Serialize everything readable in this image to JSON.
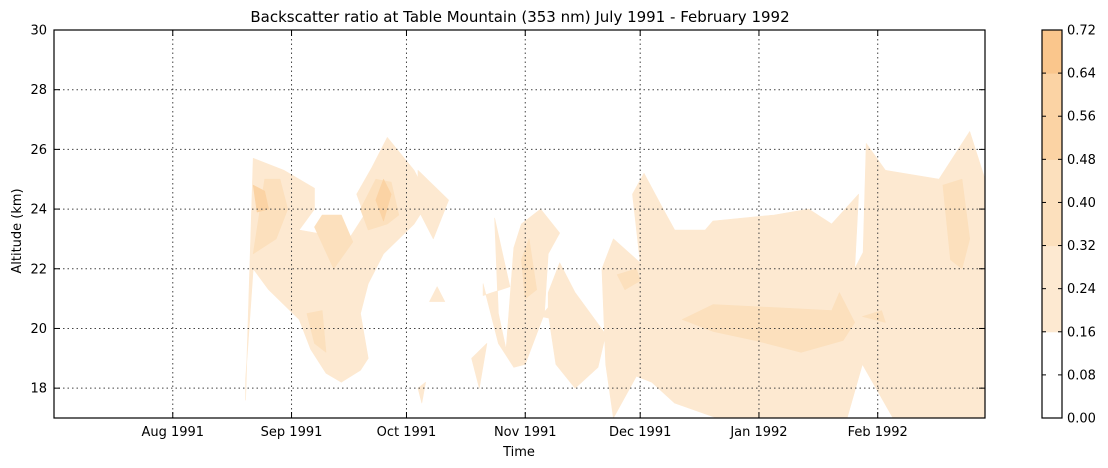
{
  "chart_data": {
    "type": "contour",
    "title": "Backscatter ratio at Table Mountain (353 nm) July 1991 - February 1992",
    "xlabel": "Time",
    "ylabel": "Altitude (km)",
    "x_range": [
      "1991-07-01",
      "1992-02-29"
    ],
    "xticks": [
      {
        "date": "1991-08-01",
        "label": "Aug 1991"
      },
      {
        "date": "1991-09-01",
        "label": "Sep 1991"
      },
      {
        "date": "1991-10-01",
        "label": "Oct 1991"
      },
      {
        "date": "1991-11-01",
        "label": "Nov 1991"
      },
      {
        "date": "1991-12-01",
        "label": "Dec 1991"
      },
      {
        "date": "1992-01-01",
        "label": "Jan 1992"
      },
      {
        "date": "1992-02-01",
        "label": "Feb 1992"
      }
    ],
    "ylim": [
      17,
      30
    ],
    "yticks": [
      "18",
      "20",
      "22",
      "24",
      "26",
      "28",
      "30"
    ],
    "grid": true,
    "colorbar": {
      "ticks": [
        "0.00",
        "0.08",
        "0.16",
        "0.24",
        "0.32",
        "0.40",
        "0.48",
        "0.56",
        "0.64",
        "0.72"
      ],
      "levels": [
        0.0,
        0.08,
        0.16,
        0.24,
        0.32,
        0.4,
        0.48,
        0.56,
        0.64,
        0.72
      ],
      "colors": [
        "#ffffff",
        "#ffffff",
        "#fde9d1",
        "#fde9d1",
        "#fce0bd",
        "#fce0bd",
        "#fbd3a4",
        "#fbd3a4",
        "#fac68c"
      ]
    },
    "regions": [
      {
        "level": 0.16,
        "points": [
          [
            "1991-08-20",
            17.6
          ],
          [
            "1991-08-22",
            25.7
          ],
          [
            "1991-08-30",
            25.3
          ],
          [
            "1991-09-07",
            24.7
          ],
          [
            "1991-09-07",
            24.0
          ],
          [
            "1991-09-03",
            23.3
          ],
          [
            "1991-09-16",
            23.0
          ],
          [
            "1991-09-20",
            23.8
          ],
          [
            "1991-09-18",
            24.5
          ],
          [
            "1991-09-22",
            25.4
          ],
          [
            "1991-09-26",
            26.4
          ],
          [
            "1991-10-03",
            25.3
          ],
          [
            "1991-10-07",
            24.3
          ],
          [
            "1991-10-03",
            23.5
          ],
          [
            "1991-09-29",
            23.0
          ],
          [
            "1991-09-25",
            22.5
          ],
          [
            "1991-09-21",
            21.5
          ],
          [
            "1991-09-19",
            20.5
          ],
          [
            "1991-09-21",
            19.0
          ],
          [
            "1991-09-19",
            18.6
          ],
          [
            "1991-09-14",
            18.2
          ],
          [
            "1991-09-10",
            18.5
          ],
          [
            "1991-09-06",
            19.3
          ],
          [
            "1991-09-03",
            20.3
          ],
          [
            "1991-08-26",
            21.3
          ],
          [
            "1991-08-22",
            22.0
          ],
          [
            "1991-08-20",
            18.3
          ]
        ]
      },
      {
        "level": 0.16,
        "points": [
          [
            "1991-10-04",
            25.3
          ],
          [
            "1991-10-12",
            24.3
          ],
          [
            "1991-10-08",
            23.0
          ],
          [
            "1991-10-04",
            24.0
          ]
        ]
      },
      {
        "level": 0.16,
        "points": [
          [
            "1991-10-21",
            21.1
          ],
          [
            "1991-10-28",
            21.4
          ],
          [
            "1991-10-24",
            23.7
          ],
          [
            "1991-10-25",
            20.5
          ],
          [
            "1991-10-27",
            19.3
          ],
          [
            "1991-10-29",
            22.7
          ],
          [
            "1991-10-31",
            23.5
          ],
          [
            "1991-11-05",
            24.0
          ],
          [
            "1991-11-10",
            23.2
          ],
          [
            "1991-11-07",
            22.5
          ],
          [
            "1991-11-06",
            20.5
          ],
          [
            "1991-11-01",
            18.8
          ],
          [
            "1991-10-29",
            18.7
          ],
          [
            "1991-10-25",
            19.5
          ],
          [
            "1991-10-21",
            21.5
          ]
        ]
      },
      {
        "level": 0.16,
        "points": [
          [
            "1991-10-18",
            19.0
          ],
          [
            "1991-10-20",
            18.0
          ],
          [
            "1991-10-22",
            19.5
          ]
        ]
      },
      {
        "level": 0.16,
        "points": [
          [
            "1991-10-04",
            18.0
          ],
          [
            "1991-10-05",
            17.5
          ],
          [
            "1991-10-06",
            18.2
          ]
        ]
      },
      {
        "level": 0.16,
        "points": [
          [
            "1991-10-07",
            20.9
          ],
          [
            "1991-10-09",
            21.4
          ],
          [
            "1991-10-11",
            20.9
          ]
        ]
      },
      {
        "level": 0.16,
        "points": [
          [
            "1991-11-05",
            20.4
          ],
          [
            "1991-11-07",
            20.7
          ],
          [
            "1991-11-09",
            20.3
          ]
        ]
      },
      {
        "level": 0.16,
        "points": [
          [
            "1991-11-07",
            21.2
          ],
          [
            "1991-11-10",
            22.2
          ],
          [
            "1991-11-14",
            21.2
          ],
          [
            "1991-11-22",
            19.8
          ],
          [
            "1991-11-20",
            18.7
          ],
          [
            "1991-11-14",
            18.0
          ],
          [
            "1991-11-09",
            18.8
          ],
          [
            "1991-11-07",
            20.5
          ]
        ]
      },
      {
        "level": 0.16,
        "points": [
          [
            "1991-11-22",
            18.8
          ],
          [
            "1991-11-21",
            22.0
          ],
          [
            "1991-11-24",
            23.0
          ],
          [
            "1991-12-01",
            22.2
          ],
          [
            "1991-11-29",
            24.5
          ],
          [
            "1991-12-02",
            25.2
          ],
          [
            "1991-12-07",
            24.0
          ],
          [
            "1991-12-10",
            23.3
          ],
          [
            "1991-12-18",
            23.3
          ],
          [
            "1991-12-20",
            23.6
          ],
          [
            "1992-01-05",
            23.8
          ],
          [
            "1992-01-14",
            24.0
          ],
          [
            "1992-01-20",
            23.5
          ],
          [
            "1992-01-27",
            24.5
          ],
          [
            "1992-01-26",
            22.0
          ],
          [
            "1992-01-30",
            23.0
          ],
          [
            "1992-02-01",
            22.5
          ],
          [
            "1992-01-28",
            21.7
          ],
          [
            "1992-01-29",
            26.2
          ],
          [
            "1992-02-03",
            25.3
          ],
          [
            "1992-02-17",
            25.0
          ],
          [
            "1992-02-25",
            26.6
          ],
          [
            "1992-02-29",
            25.0
          ],
          [
            "1992-02-29",
            17.0
          ],
          [
            "1992-02-05",
            17.0
          ],
          [
            "1992-01-28",
            18.8
          ],
          [
            "1992-01-24",
            17.0
          ],
          [
            "1991-12-21",
            17.0
          ],
          [
            "1991-12-10",
            17.5
          ],
          [
            "1991-12-04",
            18.2
          ],
          [
            "1991-11-30",
            18.4
          ],
          [
            "1991-11-24",
            17.0
          ],
          [
            "1991-11-22",
            18.8
          ]
        ]
      },
      {
        "level": 0.32,
        "points": [
          [
            "1991-08-22",
            22.5
          ],
          [
            "1991-08-25",
            25.0
          ],
          [
            "1991-08-29",
            25.0
          ],
          [
            "1991-08-31",
            24.0
          ],
          [
            "1991-08-28",
            23.0
          ],
          [
            "1991-08-22",
            22.5
          ]
        ]
      },
      {
        "level": 0.32,
        "points": [
          [
            "1991-09-07",
            23.4
          ],
          [
            "1991-09-12",
            22.0
          ],
          [
            "1991-09-17",
            22.9
          ],
          [
            "1991-09-14",
            23.8
          ],
          [
            "1991-09-09",
            23.8
          ]
        ]
      },
      {
        "level": 0.32,
        "points": [
          [
            "1991-09-05",
            20.5
          ],
          [
            "1991-09-09",
            20.6
          ],
          [
            "1991-09-10",
            19.2
          ],
          [
            "1991-09-07",
            19.5
          ]
        ]
      },
      {
        "level": 0.32,
        "points": [
          [
            "1991-09-19",
            24.0
          ],
          [
            "1991-09-23",
            25.0
          ],
          [
            "1991-09-27",
            24.9
          ],
          [
            "1991-09-29",
            23.8
          ],
          [
            "1991-09-26",
            23.5
          ],
          [
            "1991-09-21",
            23.3
          ]
        ]
      },
      {
        "level": 0.32,
        "points": [
          [
            "1991-10-31",
            22.3
          ],
          [
            "1991-11-02",
            23.0
          ],
          [
            "1991-11-04",
            21.3
          ],
          [
            "1991-11-01",
            21.0
          ]
        ]
      },
      {
        "level": 0.32,
        "points": [
          [
            "1991-11-25",
            21.8
          ],
          [
            "1991-11-30",
            22.0
          ],
          [
            "1991-12-01",
            21.6
          ],
          [
            "1991-11-27",
            21.3
          ]
        ]
      },
      {
        "level": 0.32,
        "points": [
          [
            "1991-12-12",
            20.3
          ],
          [
            "1991-12-20",
            20.8
          ],
          [
            "1992-01-05",
            20.7
          ],
          [
            "1992-01-20",
            20.6
          ],
          [
            "1992-01-22",
            21.2
          ],
          [
            "1992-01-26",
            20.2
          ],
          [
            "1992-01-23",
            19.6
          ],
          [
            "1992-01-12",
            19.2
          ],
          [
            "1991-12-31",
            19.6
          ],
          [
            "1991-12-20",
            19.9
          ]
        ]
      },
      {
        "level": 0.32,
        "points": [
          [
            "1992-01-28",
            20.4
          ],
          [
            "1992-02-02",
            20.6
          ],
          [
            "1992-02-03",
            20.2
          ]
        ]
      },
      {
        "level": 0.32,
        "points": [
          [
            "1992-02-18",
            24.8
          ],
          [
            "1992-02-23",
            25.0
          ],
          [
            "1992-02-25",
            23.0
          ],
          [
            "1992-02-23",
            22.0
          ],
          [
            "1992-02-20",
            22.3
          ]
        ]
      },
      {
        "level": 0.48,
        "points": [
          [
            "1991-08-22",
            24.8
          ],
          [
            "1991-08-25",
            24.6
          ],
          [
            "1991-08-26",
            24.0
          ],
          [
            "1991-08-23",
            23.9
          ]
        ]
      },
      {
        "level": 0.48,
        "points": [
          [
            "1991-09-23",
            24.3
          ],
          [
            "1991-09-25",
            25.0
          ],
          [
            "1991-09-27",
            24.5
          ],
          [
            "1991-09-25",
            23.6
          ]
        ]
      }
    ]
  }
}
